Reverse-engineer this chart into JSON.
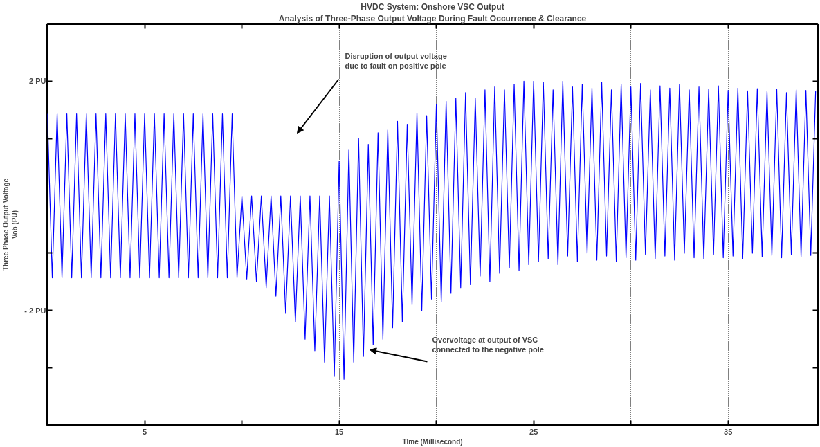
{
  "chart_data": {
    "type": "line",
    "title": "HVDC System: Onshore VSC Output",
    "subtitle": "Analysis of Three-Phase Output Voltage During Fault Occurrence & Clearance",
    "xlabel": "TIme (Millisecond)",
    "ylabel": "Three Phase Output Voltage\nVab (PU)",
    "xlim": [
      0,
      39.6
    ],
    "ylim": [
      -4,
      3
    ],
    "xticks": [
      5,
      {
        "value": 10,
        "label": null
      },
      15,
      {
        "value": 20,
        "label": null
      },
      25,
      {
        "value": 30,
        "label": null
      },
      35
    ],
    "yticks": [
      {
        "value": 2,
        "label": "2 PU"
      },
      {
        "value": 1,
        "label": null
      },
      {
        "value": -1,
        "label": null
      },
      {
        "value": -2,
        "label": "- 2 PU"
      },
      {
        "value": -3,
        "label": null
      }
    ],
    "grid": "x",
    "marker": "none",
    "line_style": "solid",
    "annotations": [
      "Disruption of output voltage\ndue to fault on positive pole",
      "Overvoltage at output of VSC\nconnected to the negative pole"
    ],
    "series": [
      {
        "color": "#0000ff",
        "x": [
          0,
          0.25,
          0.5,
          0.75,
          1,
          1.25,
          1.5,
          1.75,
          2,
          2.25,
          2.5,
          2.75,
          3,
          3.25,
          3.5,
          3.75,
          4,
          4.25,
          4.5,
          4.75,
          5,
          5.25,
          5.5,
          5.75,
          6,
          6.25,
          6.5,
          6.75,
          7,
          7.25,
          7.5,
          7.75,
          8,
          8.25,
          8.5,
          8.75,
          9,
          9.25,
          9.5,
          9.75,
          10,
          10.25,
          10.5,
          10.75,
          11,
          11.25,
          11.5,
          11.75,
          12,
          12.25,
          12.5,
          12.75,
          13,
          13.25,
          13.5,
          13.75,
          14,
          14.25,
          14.5,
          14.75,
          15,
          15.25,
          15.5,
          15.75,
          16,
          16.25,
          16.5,
          16.75,
          17,
          17.25,
          17.5,
          17.75,
          18,
          18.25,
          18.5,
          18.75,
          19,
          19.25,
          19.5,
          19.75,
          20,
          20.25,
          20.5,
          20.75,
          21,
          21.25,
          21.5,
          21.75,
          22,
          22.25,
          22.5,
          22.75,
          23,
          23.25,
          23.5,
          23.75,
          24,
          24.25,
          24.5,
          24.75,
          25,
          25.25,
          25.5,
          25.75,
          26,
          26.25,
          26.5,
          26.75,
          27,
          27.25,
          27.5,
          27.75,
          28,
          28.25,
          28.5,
          28.75,
          29,
          29.25,
          29.5,
          29.75,
          30,
          30.25,
          30.5,
          30.75,
          31,
          31.25,
          31.5,
          31.75,
          32,
          32.25,
          32.5,
          32.75,
          33,
          33.25,
          33.5,
          33.75,
          34,
          34.25,
          34.5,
          34.75,
          35,
          35.25,
          35.5,
          35.75,
          36,
          36.25,
          36.5,
          36.75,
          37,
          37.25,
          37.5,
          37.75,
          38,
          38.25,
          38.5,
          38.75,
          39,
          39.25,
          39.5
        ],
        "values": [
          1.43,
          -1.43,
          1.43,
          -1.43,
          1.43,
          -1.43,
          1.43,
          -1.43,
          1.43,
          -1.43,
          1.43,
          -1.43,
          1.43,
          -1.43,
          1.43,
          -1.43,
          1.43,
          -1.43,
          1.43,
          -1.43,
          1.43,
          -1.43,
          1.43,
          -1.43,
          1.43,
          -1.43,
          1.43,
          -1.43,
          1.43,
          -1.43,
          1.43,
          -1.43,
          1.43,
          -1.43,
          1.43,
          -1.43,
          1.43,
          -1.43,
          1.43,
          -1.43,
          0,
          -1.45,
          0,
          -1.5,
          0,
          -1.6,
          0,
          -1.75,
          0,
          -2.05,
          0,
          -2.2,
          0,
          -2.5,
          0,
          -2.7,
          0,
          -2.9,
          0,
          -3.15,
          0.6,
          -3.2,
          0.8,
          -2.9,
          1.0,
          -2.8,
          0.9,
          -2.6,
          1.1,
          -2.5,
          1.15,
          -2.3,
          1.3,
          -2.2,
          1.25,
          -1.9,
          1.45,
          -2.0,
          1.4,
          -1.8,
          1.6,
          -1.85,
          1.65,
          -1.7,
          1.7,
          -1.6,
          1.8,
          -1.55,
          1.7,
          -1.4,
          1.85,
          -1.5,
          1.9,
          -1.35,
          1.85,
          -1.25,
          1.95,
          -1.3,
          2.0,
          -1.2,
          2.0,
          -1.15,
          1.98,
          -1.1,
          1.85,
          -1.2,
          2.0,
          -1.05,
          1.9,
          -1.15,
          1.95,
          -1.0,
          1.88,
          -1.12,
          1.98,
          -1.05,
          1.85,
          -1.15,
          1.95,
          -1.08,
          1.9,
          -1.12,
          1.96,
          -1.02,
          1.85,
          -1.1,
          1.92,
          -1.05,
          1.88,
          -1.12,
          1.94,
          -1.0,
          1.85,
          -1.08,
          1.9,
          -1.1,
          1.86,
          -1.02,
          1.92,
          -1.08,
          1.84,
          -1.05,
          1.88,
          -1.1,
          1.83,
          -1.0,
          1.87,
          -1.06,
          1.82,
          -1.04,
          1.86,
          -1.08,
          1.8,
          -1.02,
          1.85,
          -1.06,
          1.84,
          -1.04,
          1.83
        ]
      }
    ]
  }
}
